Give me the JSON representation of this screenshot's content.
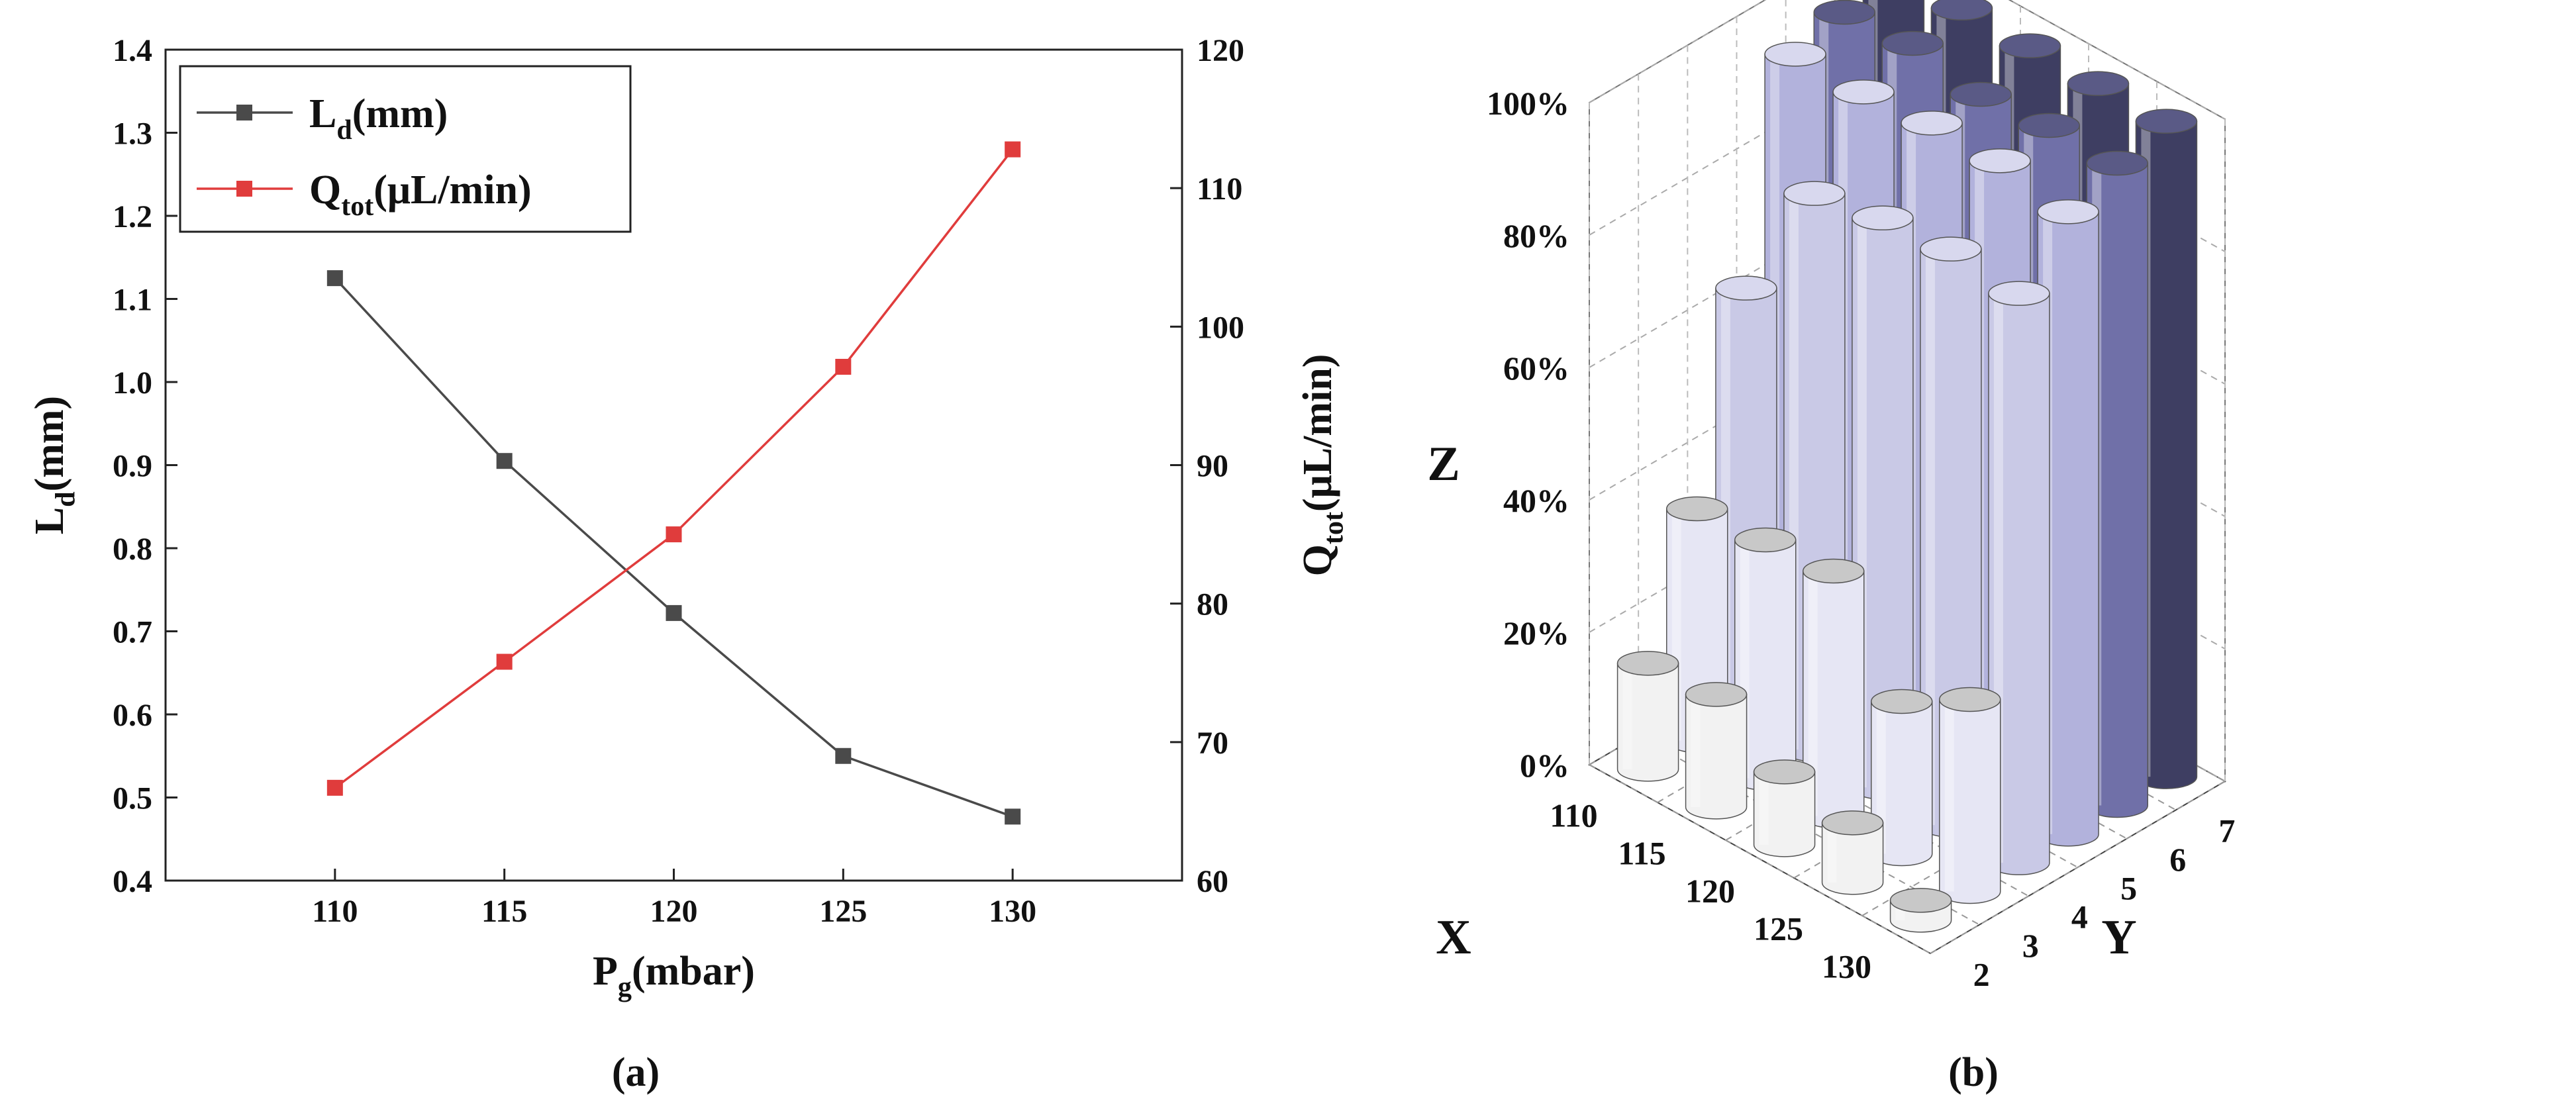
{
  "panel_labels": {
    "a": "(a)",
    "b": "(b)"
  },
  "chart_data": [
    {
      "type": "line",
      "panel": "(a)",
      "xlabel_main": "P",
      "xlabel_sub": "g",
      "xlabel_tail": "(mbar)",
      "ylabel_left_main": "L",
      "ylabel_left_sub": "d",
      "ylabel_left_tail": "(mm)",
      "ylabel_right_main": "Q",
      "ylabel_right_sub": "tot",
      "ylabel_right_tail": "(μL/min)",
      "x": [
        110,
        115,
        120,
        125,
        130
      ],
      "xticks": [
        "110",
        "115",
        "120",
        "125",
        "130"
      ],
      "xlim": [
        105,
        135
      ],
      "ylim_left": [
        0.4,
        1.4
      ],
      "yticks_left": [
        "0.4",
        "0.5",
        "0.6",
        "0.7",
        "0.8",
        "0.9",
        "1.0",
        "1.1",
        "1.2",
        "1.3",
        "1.4"
      ],
      "ylim_right": [
        60,
        120
      ],
      "yticks_right": [
        "60",
        "70",
        "80",
        "90",
        "100",
        "110",
        "120"
      ],
      "legend_position": "top-left",
      "series": [
        {
          "name_main": "L",
          "name_sub": "d",
          "name_tail": "(mm)",
          "axis": "left",
          "color": "#4a4a4a",
          "values": [
            1.125,
            0.905,
            0.722,
            0.55,
            0.477
          ]
        },
        {
          "name_main": "Q",
          "name_sub": "tot",
          "name_tail": "(μL/min)",
          "axis": "right",
          "color": "#e03c3c",
          "values": [
            66.7,
            75.8,
            85.0,
            97.1,
            112.8
          ]
        }
      ]
    },
    {
      "type": "bar3d",
      "panel": "(b)",
      "xlabel": "X",
      "ylabel": "Y",
      "zlabel": "Z",
      "xticks": [
        "110",
        "115",
        "120",
        "125",
        "130"
      ],
      "yticks": [
        "2",
        "3",
        "4",
        "5",
        "6",
        "7"
      ],
      "zticks": [
        "0%",
        "20%",
        "40%",
        "60%",
        "80%",
        "100%"
      ],
      "zlim": [
        0,
        100
      ],
      "colors": [
        "#f2f2f2",
        "#e6e6f4",
        "#c9c9e6",
        "#b2b2dc",
        "#7070a8",
        "#3e3e62"
      ],
      "values": [
        [
          16,
          35,
          64,
          95,
          97,
          99
        ],
        [
          17,
          36,
          84,
          95,
          98,
          99
        ],
        [
          11,
          37,
          86,
          96,
          96,
          99
        ],
        [
          9,
          23,
          87,
          96,
          97,
          99
        ],
        [
          0,
          29,
          86,
          94,
          97,
          99
        ]
      ]
    }
  ]
}
